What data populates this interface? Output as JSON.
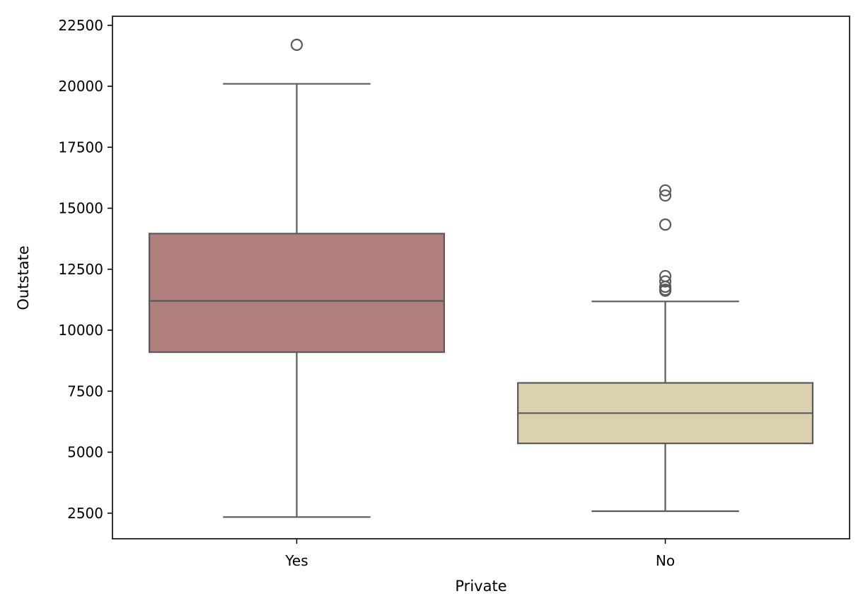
{
  "chart_data": {
    "type": "box",
    "title": "",
    "xlabel": "Private",
    "ylabel": "Outstate",
    "ylim": [
      1450,
      22870
    ],
    "yticks": [
      2500,
      5000,
      7500,
      10000,
      12500,
      15000,
      17500,
      20000,
      22500
    ],
    "grid": false,
    "categories": [
      "Yes",
      "No"
    ],
    "boxes": [
      {
        "category": "Yes",
        "color": "#b07f7e",
        "whisker_low": 2340,
        "q1": 9100,
        "median": 11200,
        "q3": 13960,
        "whisker_high": 20100,
        "outliers": [
          21700
        ]
      },
      {
        "category": "No",
        "color": "#dcd1ae",
        "whisker_low": 2580,
        "q1": 5360,
        "median": 6600,
        "q3": 7840,
        "whisker_high": 11180,
        "outliers": [
          15730,
          15520,
          14330,
          12220,
          12000,
          11780,
          11660,
          11620
        ]
      }
    ],
    "colors": {
      "edge": "#5a5a5a",
      "axis": "#000000"
    }
  }
}
